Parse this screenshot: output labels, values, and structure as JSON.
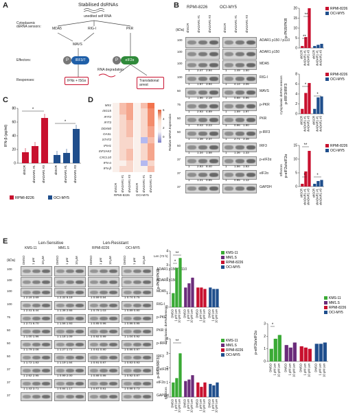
{
  "panels": {
    "A": "A",
    "B": "B",
    "C": "C",
    "D": "D",
    "E": "E"
  },
  "panelA": {
    "title": "Stabilised dsRNAs",
    "unedited": "unedited self RNA",
    "row_labels": [
      "Cytoplasmic dsRNA sensors:",
      "Effectors:",
      "Responses:"
    ],
    "sensors": [
      "MDA5",
      "RIG-I",
      "PKR"
    ],
    "mavs": "MAVS",
    "irf": "IRF3/7",
    "eif": "eIF2α",
    "p": "P",
    "ifn": "IFNs + ISGs",
    "degr": "RNA degradation",
    "trans": "Translational arrest"
  },
  "panelB": {
    "kda": "(kDa)",
    "lines": [
      "RPMI-8226",
      "OCI-MY5"
    ],
    "lanes": [
      "shSCR",
      "shADAR1 #1",
      "shADAR1 #3",
      "shSCR",
      "shADAR1 #1",
      "shADAR1 #3"
    ],
    "blots": [
      {
        "label": "ADAR1 p150 / p110",
        "kda": "100",
        "q": [
          "",
          "",
          ""
        ],
        "q2": [
          "",
          "",
          ""
        ]
      },
      {
        "label": "ADAR1 p150",
        "kda": "100",
        "q": [
          "",
          "",
          ""
        ],
        "q2": [
          "",
          "",
          ""
        ]
      },
      {
        "label": "MDA5",
        "kda": "100",
        "q": [
          "1",
          "2.47",
          "2.94"
        ],
        "q2": [
          "1",
          "1.49",
          "1.50"
        ]
      },
      {
        "label": "RIG-I",
        "kda": "100",
        "q": [
          "1",
          "1.67",
          "3.94"
        ],
        "q2": [
          "1",
          "4.14",
          "3.06"
        ]
      },
      {
        "label": "MAVS",
        "kda": "50",
        "q": [
          "1",
          "1.66",
          "2.19"
        ],
        "q2": [
          "1",
          "0.88",
          "0.96"
        ]
      },
      {
        "label": "p-PKR",
        "kda": "75",
        "q": [
          "1",
          "2.93",
          "4.89"
        ],
        "q2": [
          "1",
          "1.59",
          "1.97"
        ]
      },
      {
        "label": "PKR",
        "kda": "50",
        "q": [
          "1",
          "0.43",
          "0.23"
        ],
        "q2": [
          "1",
          "0.96",
          "1.80"
        ]
      },
      {
        "label": "p-IRF3",
        "kda": "50",
        "q": [
          "1",
          "1.38",
          "2.37"
        ],
        "q2": [
          "1",
          "2.71",
          "3.38"
        ]
      },
      {
        "label": "IRF3",
        "kda": "50",
        "q": [
          "1",
          "1.34",
          "1.58"
        ],
        "q2": [
          "1",
          "1.36",
          "1.33"
        ]
      },
      {
        "label": "p-eIF2α",
        "kda": "37",
        "q": [
          "1",
          "2.83",
          "8.40"
        ],
        "q2": [
          "1",
          "1.56",
          "1.83"
        ]
      },
      {
        "label": "eIF2α",
        "kda": "37",
        "q": [
          "1",
          "1.21",
          "0.85"
        ],
        "q2": [
          "1",
          "0.95",
          "1.12"
        ]
      },
      {
        "label": "GAPDH",
        "kda": "37",
        "q": [
          "",
          "",
          ""
        ],
        "q2": [
          "",
          "",
          ""
        ]
      }
    ],
    "groups": [
      "Cytoplasmic dsRNA sensors",
      "Effectors"
    ]
  },
  "panelC": {
    "ylabel": "IFN-β (pg/ml)",
    "yticks": [
      "0",
      "20",
      "40",
      "60",
      "80"
    ],
    "xlabels": [
      "shSCR",
      "shADAR1 #1",
      "shADAR1 #3",
      "shSCR",
      "shADAR1 #1",
      "shADAR1 #3"
    ],
    "legend": [
      "RPMI-8226",
      "OCI-MY5"
    ],
    "star": "*"
  },
  "panelD": {
    "genes": [
      "MX1",
      "ISG15",
      "IFIT2",
      "IFIT3",
      "DDX60",
      "OASL",
      "STAT2",
      "IFIH1",
      "EIF2AK2",
      "CXCL10",
      "IFN-α",
      "IFN-β"
    ],
    "xlabels": [
      "shSCR",
      "shADAR1 #1",
      "shADAR1 #3",
      "shSCR",
      "shADAR1 #1",
      "shADAR1 #3"
    ],
    "groups": [
      "RPMI-8226",
      "OCI-MY5"
    ],
    "legend_title": "Relative mRNA Expression",
    "legend_ticks": [
      "6",
      "4",
      "2",
      "0"
    ]
  },
  "panelE": {
    "header_groups": [
      "Len-Sensitive",
      "Len-Resistant"
    ],
    "lines": [
      "KMS-11",
      "MM1.S",
      "RPMI-8226",
      "OCI-MY5"
    ],
    "lane_labels": [
      "DMSO",
      "1 μM",
      "10 μM"
    ],
    "len_note": "Len (72 h)",
    "kda": "(kDa)",
    "blots": [
      {
        "label": "ADAR1 p150 / p110",
        "kda": "100",
        "q": []
      },
      {
        "label": "ADAR1 p150",
        "kda": "100",
        "q": []
      },
      {
        "label": "MDA5",
        "kda": "100",
        "q": [
          "1 2.16 3.69",
          "1 2.32 5.19",
          "1 0.59 0.54",
          "1 0.74 0.75"
        ]
      },
      {
        "label": "RIG-I",
        "kda": "100",
        "q": [
          "1 2.41 5.44",
          "1 1.36 2.65",
          "1 0.78 1.03",
          "1 0.89 0.80"
        ]
      },
      {
        "label": "p-PKR",
        "kda": "75",
        "q": [
          "1 2.71 6.70",
          "1 1.56 1.93",
          "1 0.85 0.96",
          "1 0.86 0.95"
        ]
      },
      {
        "label": "PKR",
        "kda": "50",
        "q": [
          "1 1.00 1.96",
          "1 1.18 1.09",
          "1 0.92 0.99",
          "1 1.04 0.92"
        ]
      },
      {
        "label": "p-IRF3",
        "kda": "50",
        "q": [
          "1 1.79 2.08",
          "1 1.27 1.72",
          "1 0.61 0.80",
          "1 0.86 0.97"
        ]
      },
      {
        "label": "IRF3",
        "kda": "50",
        "q": [
          "1 1.72 1.83",
          "1 1.19 1.64",
          "1 0.91 0.87",
          "1 0.83 0.93"
        ]
      },
      {
        "label": "p-eIF2α",
        "kda": "37",
        "q": [
          "1 2.62 2.95",
          "1 0.99 2.00",
          "1 0.88 0.86",
          "1 0.92 0.87"
        ]
      },
      {
        "label": "eIF2α",
        "kda": "37",
        "q": [
          "1 1.43 3.71",
          "1 0.84 1.17",
          "1 0.87 0.81",
          "1 0.88 0.73"
        ]
      },
      {
        "label": "GAPDH",
        "kda": "37",
        "q": []
      }
    ],
    "groups": [
      "Cytoplasmic dsRNA sensors",
      "Effectors"
    ]
  },
  "chart_data": [
    {
      "type": "bar",
      "ylabel": "p-PKR/PKR",
      "ylim": [
        0,
        20
      ],
      "yticks": [
        0,
        5,
        10,
        15,
        20
      ],
      "categories": [
        "shSCR",
        "shADAR1 #1",
        "shADAR1 #3"
      ],
      "series": [
        {
          "name": "RPMI-8226",
          "color": "#c8102e",
          "values": [
            1,
            5.5,
            20
          ]
        },
        {
          "name": "OCI-MY5",
          "color": "#1f4e8c",
          "values": [
            1,
            1.6,
            2.1
          ]
        }
      ]
    },
    {
      "type": "bar",
      "ylabel": "p-IRF3/IRF3",
      "ylim": [
        0,
        8
      ],
      "yticks": [
        0,
        2,
        4,
        6,
        8
      ],
      "categories": [
        "shSCR",
        "shADAR1 #1",
        "shADAR1 #3"
      ],
      "series": [
        {
          "name": "RPMI-8226",
          "color": "#c8102e",
          "values": [
            1,
            4.2,
            6.2
          ]
        },
        {
          "name": "OCI-MY5",
          "color": "#1f4e8c",
          "values": [
            1,
            3.3,
            3.5
          ]
        }
      ]
    },
    {
      "type": "bar",
      "ylabel": "p-eIF2α/eIF2α",
      "ylim": [
        0,
        15
      ],
      "yticks": [
        0,
        5,
        10,
        15
      ],
      "categories": [
        "shSCR",
        "shADAR1 #1",
        "shADAR1 #3"
      ],
      "series": [
        {
          "name": "RPMI-8226",
          "color": "#c8102e",
          "values": [
            1,
            5.5,
            13
          ]
        },
        {
          "name": "OCI-MY5",
          "color": "#1f4e8c",
          "values": [
            1,
            2,
            2.4
          ]
        }
      ]
    },
    {
      "type": "bar",
      "ylabel": "IFN-β (pg/ml)",
      "ylim": [
        0,
        80
      ],
      "categories": [
        "shSCR",
        "shADAR1 #1",
        "shADAR1 #3",
        "shSCR",
        "shADAR1 #1",
        "shADAR1 #3"
      ],
      "series": [
        {
          "name": "RPMI-8226",
          "color": "#c8102e",
          "values": [
            16,
            25,
            66,
            null,
            null,
            null
          ]
        },
        {
          "name": "OCI-MY5",
          "color": "#1f4e8c",
          "values": [
            null,
            null,
            null,
            12,
            15,
            50
          ]
        }
      ]
    },
    {
      "type": "bar",
      "ylabel": "p-PKR/PKR",
      "ylim": [
        0,
        4
      ],
      "yticks": [
        0,
        1,
        2,
        3,
        4
      ],
      "categories": [
        "DMSO",
        "1 μM Len",
        "10 μM Len"
      ],
      "series": [
        {
          "name": "KMS-11",
          "color": "#3aaa35",
          "values": [
            1,
            2.8,
            3.5
          ]
        },
        {
          "name": "MM1.S",
          "color": "#6b2c7a",
          "values": [
            1.4,
            1.7,
            2.1
          ]
        },
        {
          "name": "RPMI-8226",
          "color": "#c8102e",
          "values": [
            1.4,
            1.4,
            1.3
          ]
        },
        {
          "name": "OCI-MY5",
          "color": "#1f4e8c",
          "values": [
            1.4,
            1.3,
            1.3
          ]
        }
      ]
    },
    {
      "type": "bar",
      "ylabel": "p-IRF3/IRF3",
      "ylim": [
        0,
        4
      ],
      "yticks": [
        0,
        1,
        2,
        3,
        4
      ],
      "categories": [
        "DMSO",
        "1 μM Len",
        "10 μM Len"
      ],
      "series": [
        {
          "name": "KMS-11",
          "color": "#3aaa35",
          "values": [
            1,
            1.3,
            3
          ]
        },
        {
          "name": "MM1.S",
          "color": "#6b2c7a",
          "values": [
            1.1,
            1.2,
            1.5
          ]
        },
        {
          "name": "RPMI-8226",
          "color": "#c8102e",
          "values": [
            1,
            0.7,
            1
          ]
        },
        {
          "name": "OCI-MY5",
          "color": "#1f4e8c",
          "values": [
            0.9,
            0.8,
            1
          ]
        }
      ]
    },
    {
      "type": "bar",
      "ylabel": "p-eIF2α/eIF2α",
      "ylim": [
        0,
        3
      ],
      "yticks": [
        0,
        1,
        2,
        3
      ],
      "categories": [
        "DMSO",
        "1 μM Len",
        "10 μM Len"
      ],
      "series": [
        {
          "name": "KMS-11",
          "color": "#3aaa35",
          "values": [
            1,
            1.8,
            2.1
          ]
        },
        {
          "name": "MM1.S",
          "color": "#6b2c7a",
          "values": [
            1.3,
            1.1,
            1.5
          ]
        },
        {
          "name": "RPMI-8226",
          "color": "#c8102e",
          "values": [
            1.2,
            1.1,
            1
          ]
        },
        {
          "name": "OCI-MY5",
          "color": "#1f4e8c",
          "values": [
            1.4,
            1.4,
            1.5
          ]
        }
      ]
    }
  ],
  "heatmap": {
    "values": [
      [
        0,
        2,
        3,
        0,
        2,
        5
      ],
      [
        0,
        2,
        3,
        0,
        1,
        4
      ],
      [
        0,
        1,
        3,
        0,
        1,
        4
      ],
      [
        0,
        1,
        2,
        0,
        1,
        4
      ],
      [
        0,
        1,
        2,
        0,
        1,
        3
      ],
      [
        0,
        1,
        2,
        0,
        1,
        3
      ],
      [
        0,
        1,
        1,
        0,
        -1,
        2
      ],
      [
        0,
        1,
        1,
        0,
        1,
        3
      ],
      [
        0,
        1,
        2,
        0,
        1,
        3
      ],
      [
        0,
        1,
        2,
        0,
        1,
        3
      ],
      [
        0,
        0,
        1,
        0,
        -1,
        1
      ],
      [
        0,
        1,
        1,
        0,
        0,
        2
      ]
    ]
  }
}
